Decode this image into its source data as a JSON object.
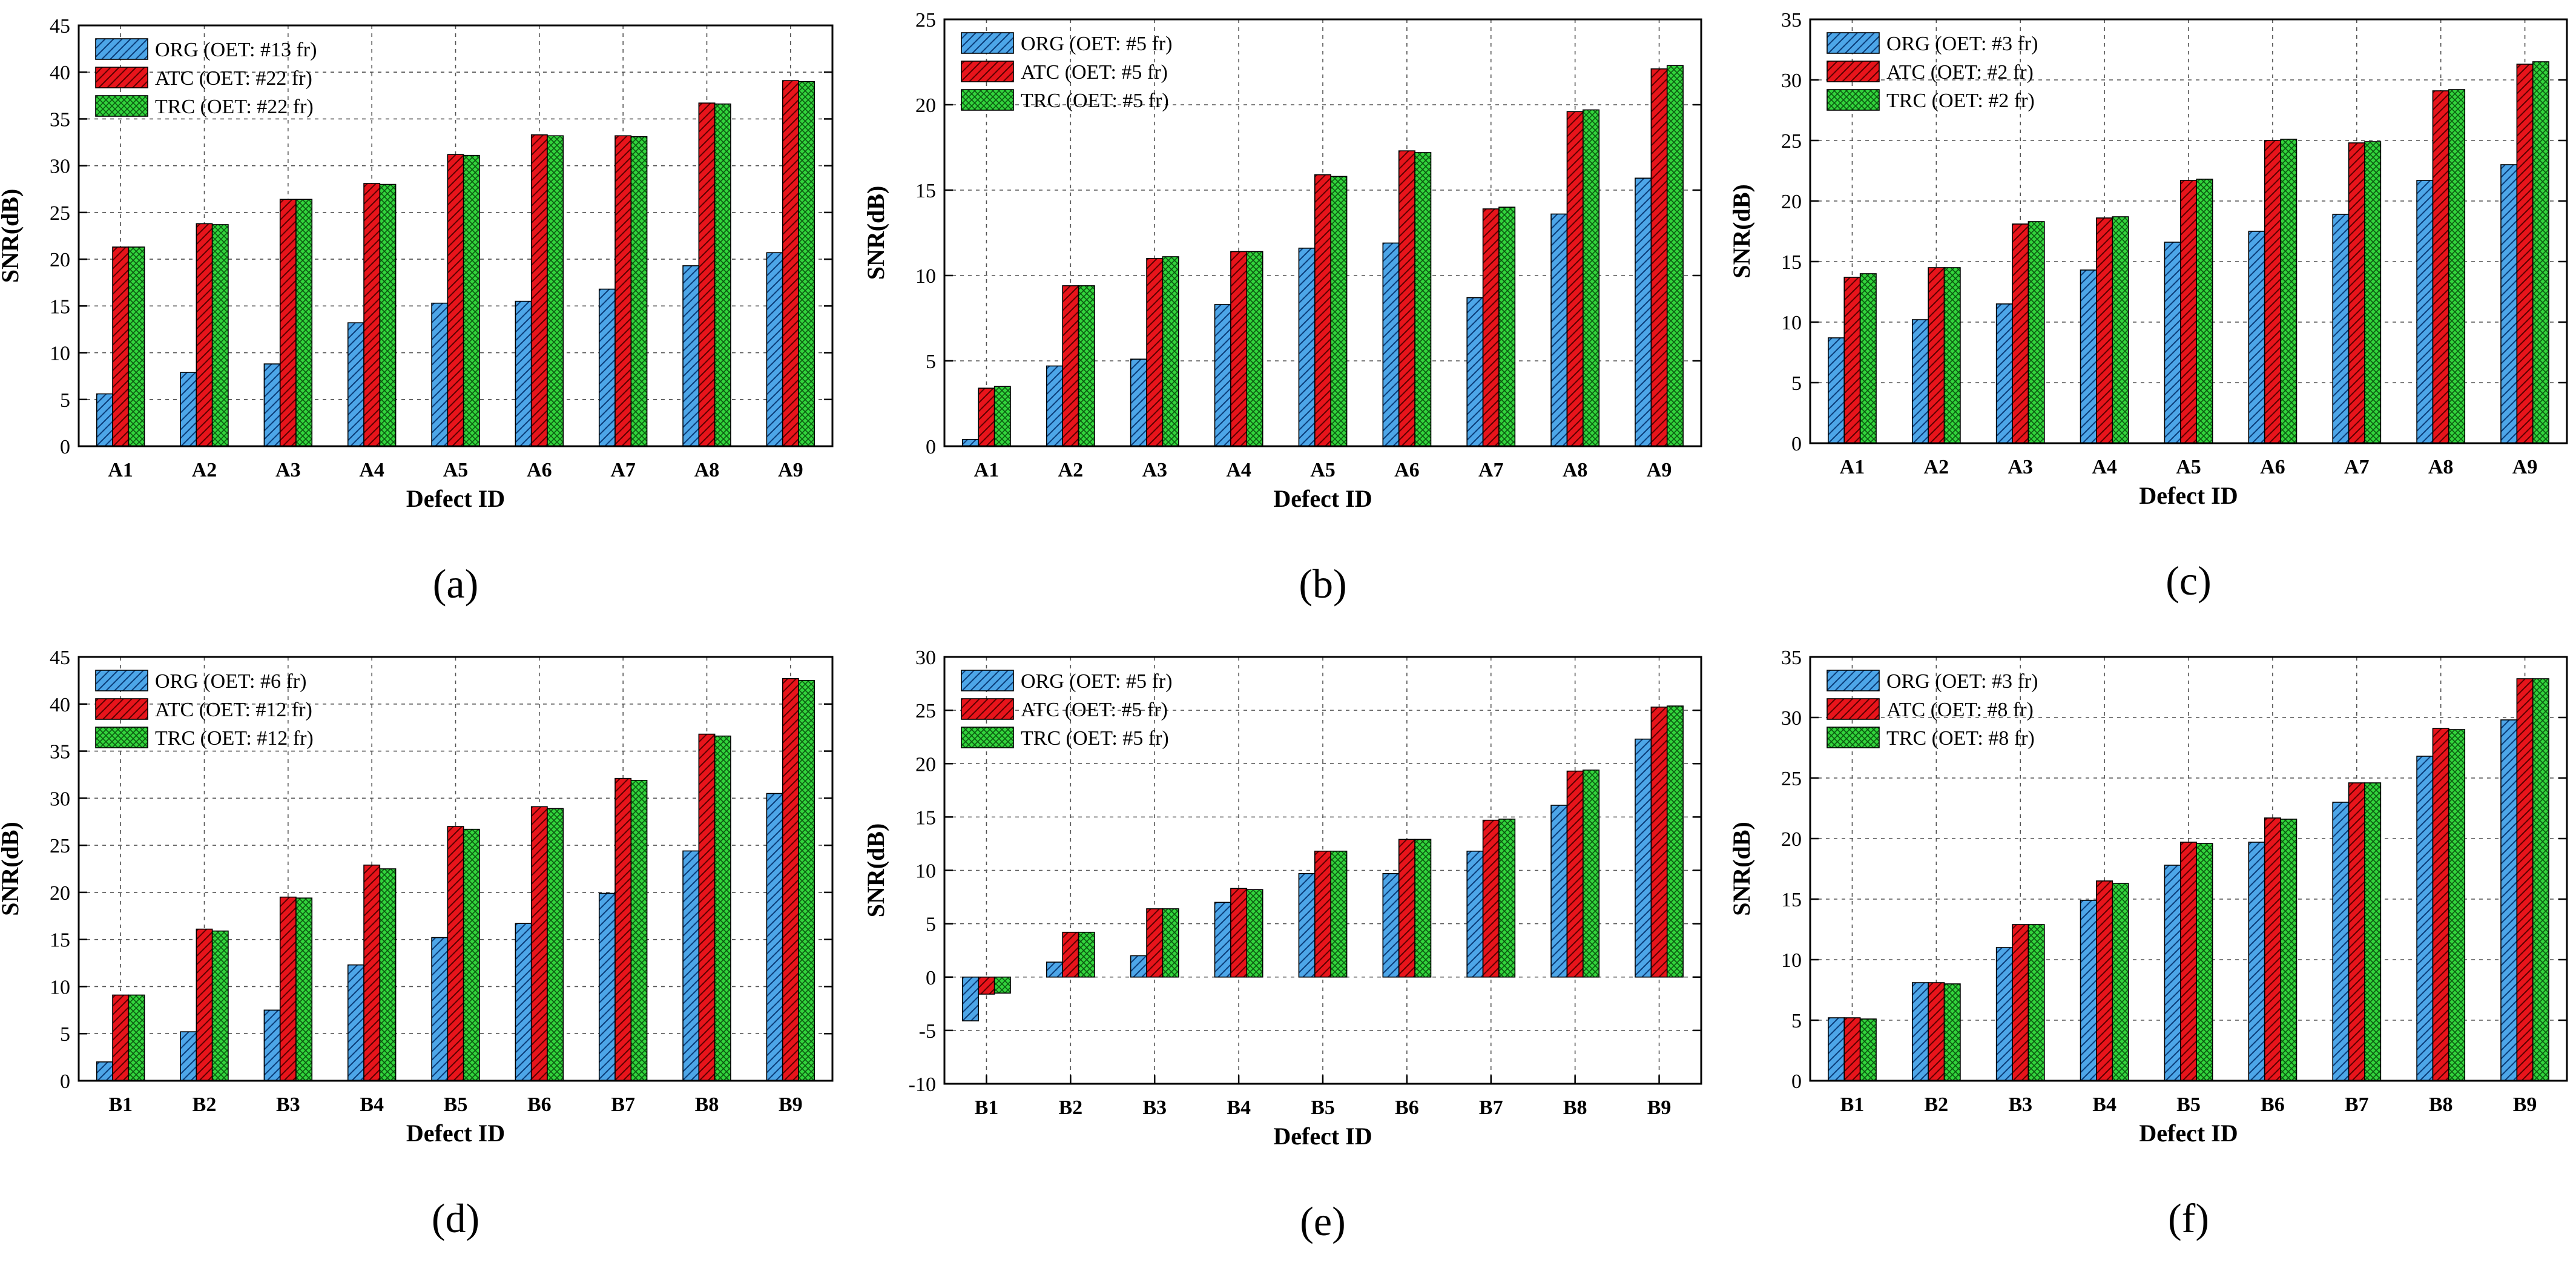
{
  "colors": {
    "ORG": "#4da6e8",
    "ATC": "#e8141b",
    "TRC": "#32d43c",
    "grid": "#555555",
    "axis": "#000000"
  },
  "chart_data": [
    {
      "panel": "(a)",
      "type": "bar",
      "xlabel": "Defect ID",
      "ylabel": "SNR(dB)",
      "ylim": [
        0,
        45
      ],
      "yticks": [
        0,
        5,
        10,
        15,
        20,
        25,
        30,
        35,
        40,
        45
      ],
      "legend_position": "top-left",
      "categories": [
        "A1",
        "A2",
        "A3",
        "A4",
        "A5",
        "A6",
        "A7",
        "A8",
        "A9"
      ],
      "series": [
        {
          "name": "ORG (OET: #13 fr)",
          "key": "ORG",
          "values": [
            5.6,
            7.9,
            8.8,
            13.2,
            15.3,
            15.5,
            16.8,
            19.3,
            20.7
          ]
        },
        {
          "name": "ATC (OET: #22 fr)",
          "key": "ATC",
          "values": [
            21.3,
            23.8,
            26.4,
            28.1,
            31.2,
            33.3,
            33.2,
            36.7,
            39.1
          ]
        },
        {
          "name": "TRC (OET: #22 fr)",
          "key": "TRC",
          "values": [
            21.3,
            23.7,
            26.4,
            28.0,
            31.1,
            33.2,
            33.1,
            36.6,
            39.0
          ]
        }
      ]
    },
    {
      "panel": "(b)",
      "type": "bar",
      "xlabel": "Defect ID",
      "ylabel": "SNR(dB)",
      "ylim": [
        0,
        25
      ],
      "yticks": [
        0,
        5,
        10,
        15,
        20,
        25
      ],
      "legend_position": "top-left",
      "categories": [
        "A1",
        "A2",
        "A3",
        "A4",
        "A5",
        "A6",
        "A7",
        "A8",
        "A9"
      ],
      "series": [
        {
          "name": "ORG (OET: #5 fr)",
          "key": "ORG",
          "values": [
            0.4,
            4.7,
            5.1,
            8.3,
            11.6,
            11.9,
            8.7,
            13.6,
            15.7
          ]
        },
        {
          "name": "ATC (OET: #5 fr)",
          "key": "ATC",
          "values": [
            3.4,
            9.4,
            11.0,
            11.4,
            15.9,
            17.3,
            13.9,
            19.6,
            22.1
          ]
        },
        {
          "name": "TRC (OET: #5 fr)",
          "key": "TRC",
          "values": [
            3.5,
            9.4,
            11.1,
            11.4,
            15.8,
            17.2,
            14.0,
            19.7,
            22.3
          ]
        }
      ]
    },
    {
      "panel": "(c)",
      "type": "bar",
      "xlabel": "Defect ID",
      "ylabel": "SNR(dB)",
      "ylim": [
        0,
        35
      ],
      "yticks": [
        0,
        5,
        10,
        15,
        20,
        25,
        30,
        35
      ],
      "legend_position": "top-left",
      "categories": [
        "A1",
        "A2",
        "A3",
        "A4",
        "A5",
        "A6",
        "A7",
        "A8",
        "A9"
      ],
      "series": [
        {
          "name": "ORG (OET: #3 fr)",
          "key": "ORG",
          "values": [
            8.7,
            10.2,
            11.5,
            14.3,
            16.6,
            17.5,
            18.9,
            21.7,
            23.0
          ]
        },
        {
          "name": "ATC (OET: #2 fr)",
          "key": "ATC",
          "values": [
            13.7,
            14.5,
            18.1,
            18.6,
            21.7,
            25.0,
            24.8,
            29.1,
            31.3
          ]
        },
        {
          "name": "TRC (OET: #2 fr)",
          "key": "TRC",
          "values": [
            14.0,
            14.5,
            18.3,
            18.7,
            21.8,
            25.1,
            24.9,
            29.2,
            31.5
          ]
        }
      ]
    },
    {
      "panel": "(d)",
      "type": "bar",
      "xlabel": "Defect ID",
      "ylabel": "SNR(dB)",
      "ylim": [
        0,
        45
      ],
      "yticks": [
        0,
        5,
        10,
        15,
        20,
        25,
        30,
        35,
        40,
        45
      ],
      "legend_position": "top-left",
      "categories": [
        "B1",
        "B2",
        "B3",
        "B4",
        "B5",
        "B6",
        "B7",
        "B8",
        "B9"
      ],
      "series": [
        {
          "name": "ORG (OET: #6 fr)",
          "key": "ORG",
          "values": [
            2.0,
            5.2,
            7.5,
            12.3,
            15.2,
            16.7,
            19.9,
            24.4,
            30.5
          ]
        },
        {
          "name": "ATC (OET: #12 fr)",
          "key": "ATC",
          "values": [
            9.1,
            16.1,
            19.5,
            22.9,
            27.0,
            29.1,
            32.1,
            36.8,
            42.7
          ]
        },
        {
          "name": "TRC (OET: #12 fr)",
          "key": "TRC",
          "values": [
            9.1,
            15.9,
            19.4,
            22.5,
            26.7,
            28.9,
            31.9,
            36.6,
            42.5
          ]
        }
      ]
    },
    {
      "panel": "(e)",
      "type": "bar",
      "xlabel": "Defect ID",
      "ylabel": "SNR(dB)",
      "ylim": [
        -10,
        30
      ],
      "yticks": [
        -10,
        -5,
        0,
        5,
        10,
        15,
        20,
        25,
        30
      ],
      "legend_position": "top-left",
      "categories": [
        "B1",
        "B2",
        "B3",
        "B4",
        "B5",
        "B6",
        "B7",
        "B8",
        "B9"
      ],
      "series": [
        {
          "name": "ORG (OET: #5 fr)",
          "key": "ORG",
          "values": [
            -4.1,
            1.4,
            2.0,
            7.0,
            9.7,
            9.7,
            11.8,
            16.1,
            22.3
          ]
        },
        {
          "name": "ATC (OET: #5 fr)",
          "key": "ATC",
          "values": [
            -1.6,
            4.2,
            6.4,
            8.3,
            11.8,
            12.9,
            14.7,
            19.3,
            25.3
          ]
        },
        {
          "name": "TRC (OET: #5 fr)",
          "key": "TRC",
          "values": [
            -1.5,
            4.2,
            6.4,
            8.2,
            11.8,
            12.9,
            14.8,
            19.4,
            25.4
          ]
        }
      ]
    },
    {
      "panel": "(f)",
      "type": "bar",
      "xlabel": "Defect ID",
      "ylabel": "SNR(dB)",
      "ylim": [
        0,
        35
      ],
      "yticks": [
        0,
        5,
        10,
        15,
        20,
        25,
        30,
        35
      ],
      "legend_position": "top-left",
      "categories": [
        "B1",
        "B2",
        "B3",
        "B4",
        "B5",
        "B6",
        "B7",
        "B8",
        "B9"
      ],
      "series": [
        {
          "name": "ORG (OET: #3 fr)",
          "key": "ORG",
          "values": [
            5.2,
            8.1,
            11.0,
            14.9,
            17.8,
            19.7,
            23.0,
            26.8,
            29.8
          ]
        },
        {
          "name": "ATC (OET: #8 fr)",
          "key": "ATC",
          "values": [
            5.2,
            8.1,
            12.9,
            16.5,
            19.7,
            21.7,
            24.6,
            29.1,
            33.2
          ]
        },
        {
          "name": "TRC (OET: #8 fr)",
          "key": "TRC",
          "values": [
            5.1,
            8.0,
            12.9,
            16.3,
            19.6,
            21.6,
            24.6,
            29.0,
            33.2
          ]
        }
      ]
    }
  ]
}
